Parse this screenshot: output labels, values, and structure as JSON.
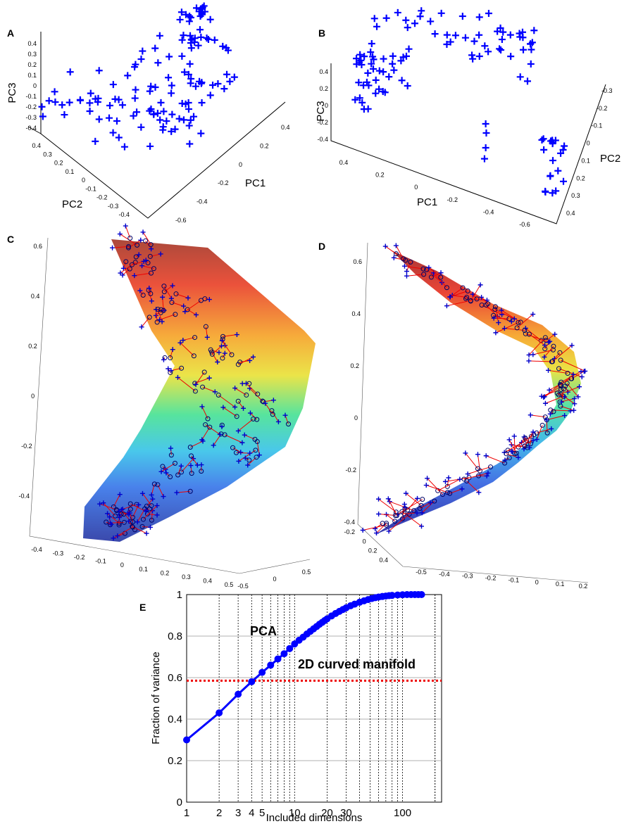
{
  "panels": {
    "A": {
      "label": "A",
      "xlabel": "PC1",
      "ylabel": "PC2",
      "zlabel": "PC3",
      "pc3_ticks": [
        "0.4",
        "0.3",
        "0.2",
        "0.1",
        "0",
        "-0.1",
        "-0.2",
        "-0.3",
        "-0.4"
      ],
      "pc2_ticks": [
        "0.4",
        "0.3",
        "0.2",
        "0.1",
        "0",
        "-0.1",
        "-0.2",
        "-0.3",
        "-0.4"
      ],
      "pc1_ticks": [
        "0.4",
        "0.2",
        "0",
        "-0.2",
        "-0.4",
        "-0.6"
      ]
    },
    "B": {
      "label": "B",
      "xlabel": "PC1",
      "ylabel": "PC2",
      "zlabel": "PC3",
      "pc3_ticks": [
        "0.4",
        "0.2",
        "0",
        "-0.2",
        "-0.4"
      ],
      "pc1_ticks": [
        "0.4",
        "0.2",
        "0",
        "-0.2",
        "-0.4",
        "-0.6"
      ],
      "pc2_ticks": [
        "-0.3",
        "-0.2",
        "-0.1",
        "0",
        "0.1",
        "0.2",
        "0.3",
        "0.4"
      ]
    },
    "C": {
      "label": "C",
      "z_ticks": [
        "0.6",
        "0.4",
        "0.2",
        "0",
        "-0.2",
        "-0.4"
      ],
      "x_ticks": [
        "-0.4",
        "-0.3",
        "-0.2",
        "-0.1",
        "0",
        "0.1",
        "0.2",
        "0.3",
        "0.4",
        "0.5"
      ],
      "y_ticks": [
        "-0.5",
        "0",
        "0.5"
      ]
    },
    "D": {
      "label": "D",
      "z_ticks": [
        "0.6",
        "0.4",
        "0.2",
        "0",
        "-0.2",
        "-0.4"
      ],
      "y_ticks": [
        "-0.2",
        "0",
        "0.2",
        "0.4"
      ],
      "x_ticks": [
        "-0.5",
        "-0.4",
        "-0.3",
        "-0.2",
        "-0.1",
        "0",
        "0.1",
        "0.2"
      ]
    }
  },
  "chart_data": {
    "type": "line",
    "label": "E",
    "xlabel": "Included dimensions",
    "ylabel": "Fraction of variance",
    "xscale": "log",
    "xlim": [
      1,
      230
    ],
    "ylim": [
      0,
      1
    ],
    "xticks": [
      1,
      2,
      3,
      4,
      5,
      10,
      20,
      30,
      100
    ],
    "xticklabels": [
      "1",
      "2",
      "3",
      "4",
      "5",
      "10",
      "20",
      "30",
      "100"
    ],
    "yticks": [
      0,
      0.2,
      0.4,
      0.6,
      0.8,
      1
    ],
    "yticklabels": [
      "0",
      "0.2",
      "0.4",
      "0.6",
      "0.8",
      "1"
    ],
    "series": [
      {
        "name": "PCA",
        "label": "PCA",
        "color": "#0000ff",
        "x": [
          1,
          2,
          3,
          4,
          5,
          6,
          7,
          8,
          9,
          10,
          11,
          12,
          13,
          14,
          15,
          16,
          17,
          18,
          19,
          20,
          22,
          24,
          26,
          28,
          30,
          33,
          36,
          40,
          44,
          48,
          52,
          56,
          60,
          65,
          70,
          75,
          80,
          90,
          100,
          110,
          120,
          130,
          140,
          150
        ],
        "y": [
          0.3,
          0.43,
          0.52,
          0.58,
          0.625,
          0.66,
          0.69,
          0.715,
          0.74,
          0.762,
          0.78,
          0.795,
          0.81,
          0.823,
          0.835,
          0.846,
          0.857,
          0.866,
          0.875,
          0.883,
          0.897,
          0.909,
          0.919,
          0.928,
          0.936,
          0.946,
          0.954,
          0.963,
          0.97,
          0.976,
          0.981,
          0.985,
          0.988,
          0.991,
          0.993,
          0.995,
          0.996,
          0.998,
          0.999,
          1.0,
          1.0,
          1.0,
          1.0,
          1.0
        ]
      },
      {
        "name": "2D curved manifold",
        "label": "2D curved manifold",
        "color": "#ee0000",
        "style": "dotted",
        "value": 0.585
      }
    ]
  }
}
